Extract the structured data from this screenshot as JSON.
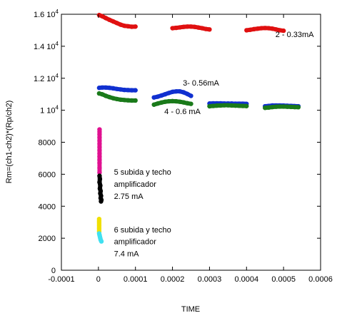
{
  "chart_data": {
    "type": "scatter",
    "xlabel": "TIME",
    "ylabel": "Rm=(ch1-ch2)*(Rp/ch2)",
    "xlim": [
      -0.0001,
      0.0006
    ],
    "ylim": [
      0,
      16000
    ],
    "grid": false,
    "x_ticks": [
      {
        "value": -0.0001,
        "label": "-0.0001"
      },
      {
        "value": 0,
        "label": "0"
      },
      {
        "value": 0.0001,
        "label": "0.0001"
      },
      {
        "value": 0.0002,
        "label": "0.0002"
      },
      {
        "value": 0.0003,
        "label": "0.0003"
      },
      {
        "value": 0.0004,
        "label": "0.0004"
      },
      {
        "value": 0.0005,
        "label": "0.0005"
      },
      {
        "value": 0.0006,
        "label": "0.0006"
      }
    ],
    "y_ticks": [
      {
        "value": 0,
        "label": "0",
        "exp": ""
      },
      {
        "value": 2000,
        "label": "2000",
        "exp": ""
      },
      {
        "value": 4000,
        "label": "4000",
        "exp": ""
      },
      {
        "value": 6000,
        "label": "6000",
        "exp": ""
      },
      {
        "value": 8000,
        "label": "8000",
        "exp": ""
      },
      {
        "value": 10000,
        "label": "1 10",
        "exp": "4"
      },
      {
        "value": 12000,
        "label": "1.2 10",
        "exp": "4"
      },
      {
        "value": 14000,
        "label": "1.4 10",
        "exp": "4"
      },
      {
        "value": 16000,
        "label": "1.6 10",
        "exp": "4"
      }
    ],
    "series": [
      {
        "color": "#e01010",
        "segments": [
          {
            "x": [
              2e-06,
              1e-05,
              2e-05,
              3e-05,
              4e-05,
              5e-05,
              6e-05,
              7e-05,
              8e-05,
              9e-05,
              0.0001
            ],
            "y": [
              15950,
              15880,
              15760,
              15650,
              15550,
              15450,
              15350,
              15280,
              15250,
              15220,
              15230
            ]
          },
          {
            "x": [
              0.0002,
              0.00021,
              0.00022,
              0.00023,
              0.00024,
              0.00025,
              0.00026,
              0.00027,
              0.00028,
              0.00029,
              0.0003
            ],
            "y": [
              15130,
              15150,
              15180,
              15210,
              15230,
              15230,
              15210,
              15170,
              15130,
              15080,
              15050
            ]
          },
          {
            "x": [
              0.0004,
              0.00041,
              0.00042,
              0.00043,
              0.00044,
              0.00045,
              0.00046,
              0.00047,
              0.00048,
              0.00049,
              0.0005
            ],
            "y": [
              15000,
              15030,
              15070,
              15100,
              15130,
              15140,
              15130,
              15100,
              15050,
              15000,
              14970
            ]
          }
        ]
      },
      {
        "color": "#1030d0",
        "segments": [
          {
            "x": [
              2e-06,
              1e-05,
              2e-05,
              3e-05,
              4e-05,
              5e-05,
              6e-05,
              7e-05,
              8e-05,
              9e-05,
              0.0001
            ],
            "y": [
              11400,
              11420,
              11420,
              11400,
              11370,
              11330,
              11300,
              11270,
              11260,
              11250,
              11250
            ]
          },
          {
            "x": [
              0.00015,
              0.00016,
              0.00017,
              0.00018,
              0.00019,
              0.0002,
              0.00021,
              0.00022,
              0.00023,
              0.00024,
              0.00025
            ],
            "y": [
              10800,
              10850,
              10920,
              11000,
              11080,
              11150,
              11180,
              11180,
              11120,
              11020,
              10900
            ]
          },
          {
            "x": [
              0.0003,
              0.00031,
              0.00032,
              0.00033,
              0.00034,
              0.00035,
              0.00036,
              0.00037,
              0.00038,
              0.00039,
              0.0004
            ],
            "y": [
              10420,
              10430,
              10430,
              10430,
              10420,
              10420,
              10420,
              10410,
              10410,
              10410,
              10400
            ]
          },
          {
            "x": [
              0.00045,
              0.00046,
              0.00047,
              0.00048,
              0.00049,
              0.0005,
              0.00051,
              0.00052,
              0.00053,
              0.00054
            ],
            "y": [
              10250,
              10270,
              10300,
              10300,
              10300,
              10290,
              10280,
              10270,
              10260,
              10250
            ]
          }
        ]
      },
      {
        "color": "#1a7a1a",
        "segments": [
          {
            "x": [
              2e-06,
              1e-05,
              2e-05,
              3e-05,
              4e-05,
              5e-05,
              6e-05,
              7e-05,
              8e-05,
              9e-05,
              0.0001
            ],
            "y": [
              11050,
              11000,
              10900,
              10820,
              10750,
              10700,
              10660,
              10640,
              10620,
              10610,
              10610
            ]
          },
          {
            "x": [
              0.00015,
              0.00016,
              0.00017,
              0.00018,
              0.00019,
              0.0002,
              0.00021,
              0.00022,
              0.00023,
              0.00024,
              0.00025
            ],
            "y": [
              10350,
              10420,
              10480,
              10530,
              10560,
              10570,
              10560,
              10530,
              10490,
              10440,
              10400
            ]
          },
          {
            "x": [
              0.0003,
              0.00031,
              0.00032,
              0.00033,
              0.00034,
              0.00035,
              0.00036,
              0.00037,
              0.00038,
              0.00039,
              0.0004
            ],
            "y": [
              10250,
              10270,
              10290,
              10300,
              10310,
              10310,
              10300,
              10290,
              10280,
              10270,
              10260
            ]
          },
          {
            "x": [
              0.00045,
              0.00046,
              0.00047,
              0.00048,
              0.00049,
              0.0005,
              0.00051,
              0.00052,
              0.00053,
              0.00054
            ],
            "y": [
              10150,
              10170,
              10200,
              10220,
              10230,
              10230,
              10220,
              10210,
              10200,
              10190
            ]
          }
        ]
      },
      {
        "color": "#e01090",
        "segments": [
          {
            "x": [
              3e-06,
              3e-06,
              3e-06,
              3e-06,
              3e-06,
              3e-06,
              3e-06,
              3e-06,
              3e-06,
              3e-06,
              3e-06,
              3e-06,
              3e-06,
              3e-06
            ],
            "y": [
              8800,
              8650,
              8500,
              8300,
              8100,
              7900,
              7700,
              7500,
              7300,
              7100,
              6900,
              6700,
              6400,
              6100
            ]
          }
        ]
      },
      {
        "color": "#000000",
        "segments": [
          {
            "x": [
              3e-06,
              4e-06,
              3e-06,
              5e-06,
              4e-06,
              6e-06,
              5e-06,
              7e-06,
              6e-06,
              8e-06,
              7e-06
            ],
            "y": [
              5900,
              5700,
              5500,
              5300,
              5100,
              4950,
              4800,
              4650,
              4500,
              4400,
              4300
            ]
          }
        ]
      },
      {
        "color": "#f0e000",
        "segments": [
          {
            "x": [
              2e-06,
              2e-06,
              2e-06,
              2e-06,
              2e-06,
              2e-06,
              2e-06,
              2e-06,
              2e-06
            ],
            "y": [
              3200,
              3100,
              3000,
              2900,
              2800,
              2700,
              2600,
              2500,
              2400
            ]
          }
        ]
      },
      {
        "color": "#40e0f0",
        "segments": [
          {
            "x": [
              2e-06,
              3e-06,
              4e-06,
              5e-06,
              6e-06,
              7e-06,
              8e-06
            ],
            "y": [
              2300,
              2200,
              2100,
              2000,
              1900,
              1850,
              1800
            ]
          }
        ]
      }
    ],
    "annotations": [
      {
        "text": "2 - 0.33mA",
        "x": 0.000478,
        "y": 14580
      },
      {
        "text": "3- 0.56mA",
        "x": 0.000228,
        "y": 11550
      },
      {
        "text": "4 - 0.6 mA",
        "x": 0.000178,
        "y": 9750
      },
      {
        "text": "5 subida y techo",
        "x": 4.2e-05,
        "y": 5980
      },
      {
        "text": "amplificador",
        "x": 4.2e-05,
        "y": 5220
      },
      {
        "text": "2.75 mA",
        "x": 4.2e-05,
        "y": 4460
      },
      {
        "text": "6 subida y techo",
        "x": 4.2e-05,
        "y": 2360
      },
      {
        "text": "amplificador",
        "x": 4.2e-05,
        "y": 1620
      },
      {
        "text": "7.4 mA",
        "x": 4.2e-05,
        "y": 860
      }
    ]
  }
}
